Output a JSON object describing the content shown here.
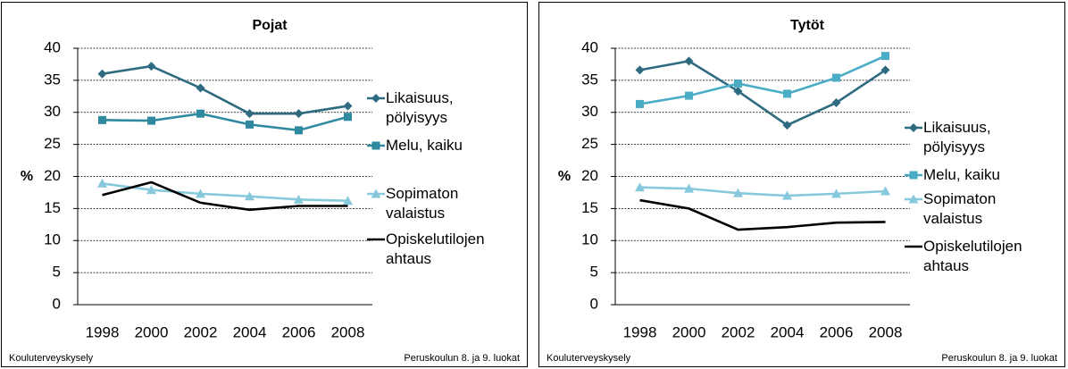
{
  "chart_data": [
    {
      "type": "line",
      "title": "Pojat",
      "y_label": "%",
      "source": "Kouluterveyskysely",
      "note": "Peruskoulun 8. ja 9. luokat",
      "categories": [
        "1998",
        "2000",
        "2002",
        "2004",
        "2006",
        "2008"
      ],
      "ylim": [
        0,
        40
      ],
      "yticks": [
        0,
        5,
        10,
        15,
        20,
        25,
        30,
        35,
        40
      ],
      "grid": true,
      "legend": "right",
      "series": [
        {
          "name": "Likaisuus, pölyisyys",
          "color": "#2e6b80",
          "marker": "diamond",
          "values": [
            36,
            37.2,
            33.8,
            29.8,
            29.8,
            31
          ]
        },
        {
          "name": "Melu, kaiku",
          "color": "#2f8aa0",
          "marker": "square",
          "values": [
            28.8,
            28.7,
            29.8,
            28.1,
            27.2,
            29.3
          ]
        },
        {
          "name": "Sopimaton valaistus",
          "color": "#86c9dc",
          "marker": "triangle",
          "values": [
            18.9,
            17.9,
            17.3,
            16.9,
            16.4,
            16.2
          ]
        },
        {
          "name": "Opiskelutilojen ahtaus",
          "color": "#000000",
          "values": [
            17.1,
            19.1,
            15.9,
            14.8,
            15.4,
            15.4
          ]
        }
      ]
    },
    {
      "type": "line",
      "title": "Tytöt",
      "y_label": "%",
      "source": "Kouluterveyskysely",
      "note": "Peruskoulun 8. ja 9. luokat",
      "categories": [
        "1998",
        "2000",
        "2002",
        "2004",
        "2006",
        "2008"
      ],
      "ylim": [
        0,
        40
      ],
      "yticks": [
        0,
        5,
        10,
        15,
        20,
        25,
        30,
        35,
        40
      ],
      "grid": true,
      "legend": "right",
      "series": [
        {
          "name": "Likaisuus, pölyisyys",
          "color": "#2e6b80",
          "marker": "diamond",
          "values": [
            36.6,
            38,
            33.3,
            28,
            31.5,
            36.6
          ]
        },
        {
          "name": "Melu, kaiku",
          "color": "#4bacc6",
          "marker": "square",
          "values": [
            31.3,
            32.6,
            34.5,
            32.9,
            35.4,
            38.8
          ]
        },
        {
          "name": "Sopimaton valaistus",
          "color": "#86c9dc",
          "marker": "triangle",
          "values": [
            18.3,
            18.1,
            17.4,
            17,
            17.3,
            17.7
          ]
        },
        {
          "name": "Opiskelutilojen ahtaus",
          "color": "#000000",
          "values": [
            16.3,
            15,
            11.7,
            12.1,
            12.8,
            12.9
          ]
        }
      ]
    }
  ]
}
